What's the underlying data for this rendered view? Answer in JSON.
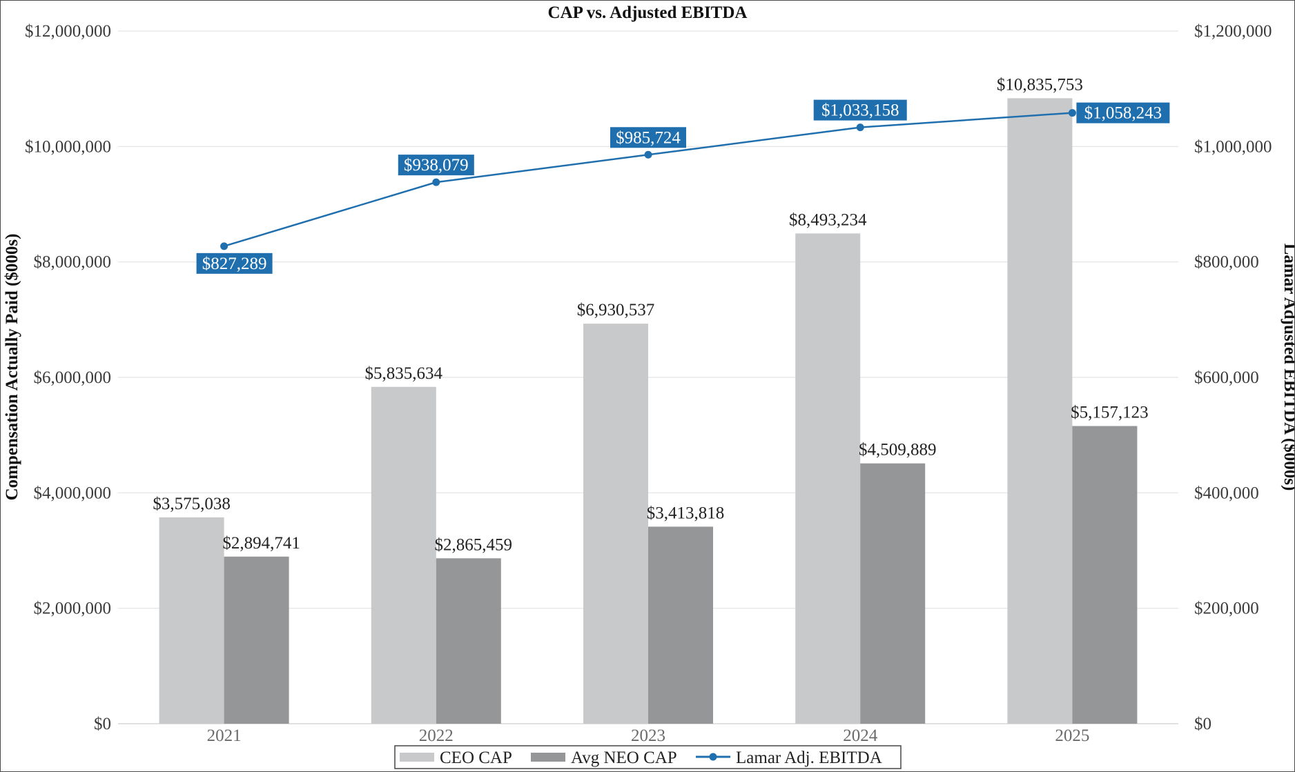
{
  "chart_data": {
    "type": "bar",
    "title": "CAP vs. Adjusted EBITDA",
    "categories": [
      "2021",
      "2022",
      "2023",
      "2024",
      "2025"
    ],
    "y_left": {
      "label": "Compensation Actually Paid ($000s)",
      "min": 0,
      "max": 12000000,
      "ticks": [
        0,
        2000000,
        4000000,
        6000000,
        8000000,
        10000000,
        12000000
      ],
      "tick_labels": [
        "$0",
        "$2,000,000",
        "$4,000,000",
        "$6,000,000",
        "$8,000,000",
        "$10,000,000",
        "$12,000,000"
      ]
    },
    "y_right": {
      "label": "Lamar Adjusted EBITDA ($000s)",
      "min": 0,
      "max": 1200000,
      "ticks": [
        0,
        200000,
        400000,
        600000,
        800000,
        1000000,
        1200000
      ],
      "tick_labels": [
        "$0",
        "$200,000",
        "$400,000",
        "$600,000",
        "$800,000",
        "$1,000,000",
        "$1,200,000"
      ]
    },
    "series": [
      {
        "name": "CEO CAP",
        "kind": "bar",
        "axis": "left",
        "color": "#c8c9cb",
        "values": [
          3575038,
          5835634,
          6930537,
          8493234,
          10835753
        ],
        "labels": [
          "$3,575,038",
          "$5,835,634",
          "$6,930,537",
          "$8,493,234",
          "$10,835,753"
        ]
      },
      {
        "name": "Avg NEO CAP",
        "kind": "bar",
        "axis": "left",
        "color": "#959698",
        "values": [
          2894741,
          2865459,
          3413818,
          4509889,
          5157123
        ],
        "labels": [
          "$2,894,741",
          "$2,865,459",
          "$3,413,818",
          "$4,509,889",
          "$5,157,123"
        ]
      },
      {
        "name": "Lamar Adj. EBITDA",
        "kind": "line",
        "axis": "right",
        "color": "#1f6fae",
        "values": [
          827289,
          938079,
          985724,
          1033158,
          1058243
        ],
        "labels": [
          "$827,289",
          "$938,079",
          "$985,724",
          "$1,033,158",
          "$1,058,243"
        ]
      }
    ],
    "grid": true,
    "legend": "bottom-center"
  }
}
